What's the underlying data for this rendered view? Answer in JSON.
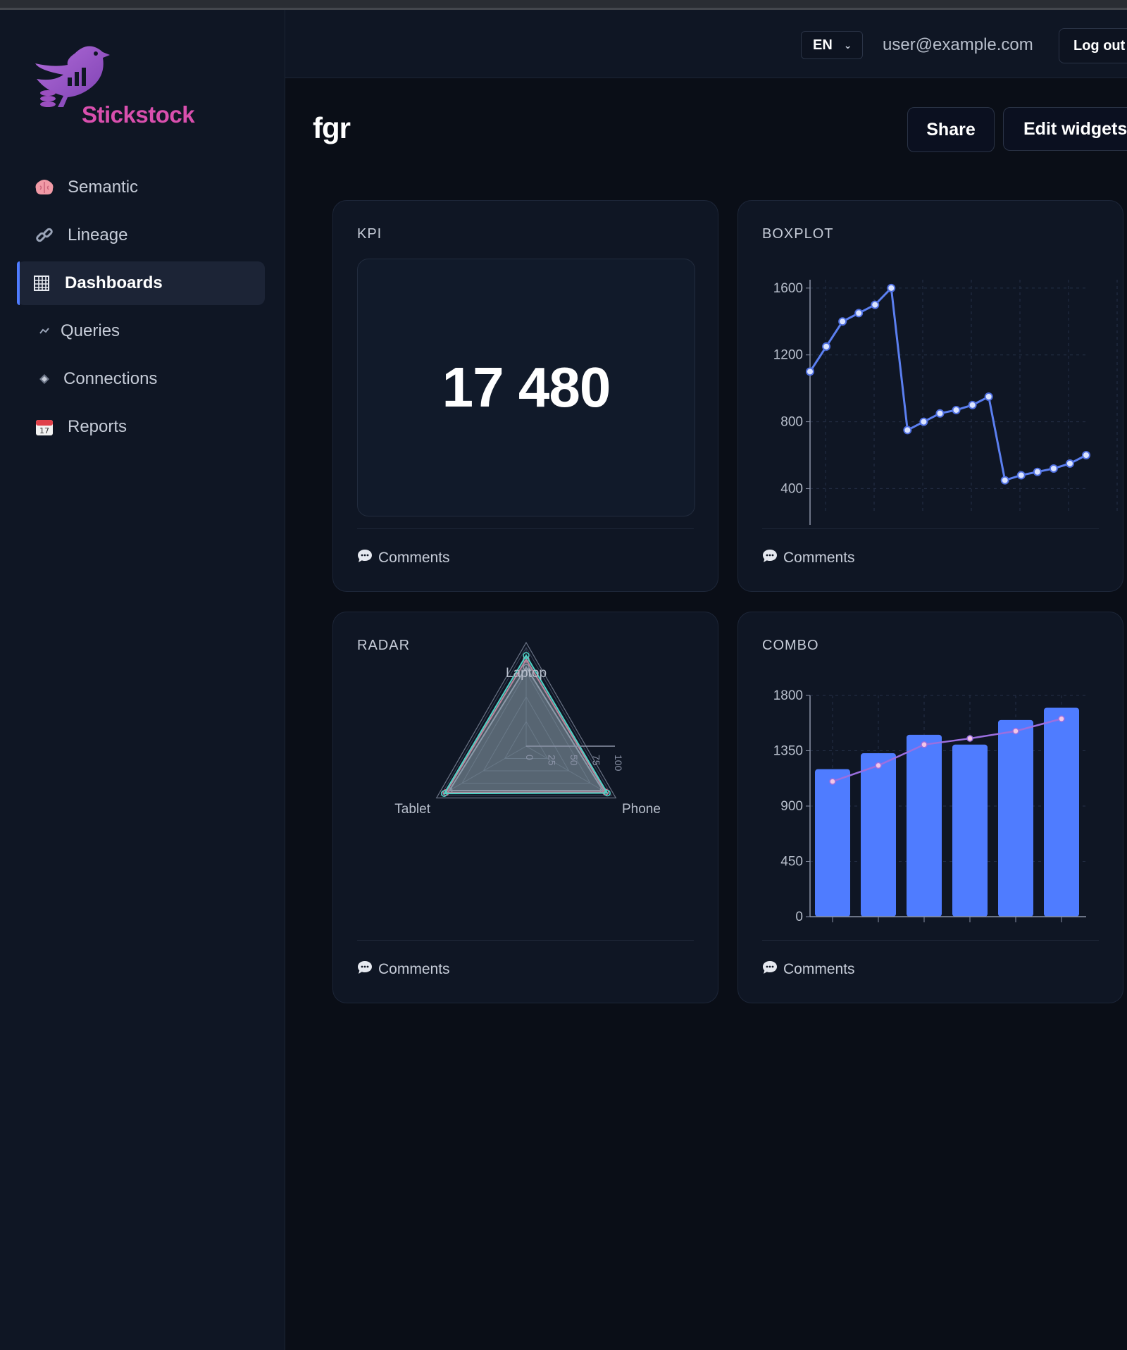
{
  "app": {
    "brand": "Stickstock",
    "colors": {
      "accent": "#4f7cff",
      "brand": "#d94fae",
      "line": "#9b6fe0",
      "background": "#0a0e17"
    }
  },
  "sidebar": {
    "items": [
      {
        "label": "Semantic",
        "icon": "brain-icon",
        "active": false
      },
      {
        "label": "Lineage",
        "icon": "link-icon",
        "active": false
      },
      {
        "label": "Dashboards",
        "icon": "grid-icon",
        "active": true
      },
      {
        "label": "Queries",
        "icon": "queries-icon",
        "active": false
      },
      {
        "label": "Connections",
        "icon": "diamond-icon",
        "active": false
      },
      {
        "label": "Reports",
        "icon": "calendar-icon",
        "active": false
      }
    ]
  },
  "topbar": {
    "language": "EN",
    "user_email": "user@example.com",
    "logout_label": "Log out"
  },
  "header": {
    "title": "fgr",
    "share_label": "Share",
    "edit_label": "Edit widgets"
  },
  "widgets": {
    "kpi": {
      "title": "KPI",
      "value": "17 480",
      "comments_label": "Comments"
    },
    "boxplot": {
      "title": "BOXPLOT",
      "comments_label": "Comments"
    },
    "radar": {
      "title": "RADAR",
      "comments_label": "Comments"
    },
    "combo": {
      "title": "COMBO",
      "comments_label": "Comments"
    }
  },
  "chart_data": [
    {
      "type": "line",
      "title": "BOXPLOT",
      "x": [
        1,
        2,
        3,
        4,
        5,
        6,
        7,
        8,
        9,
        10,
        11,
        12,
        13,
        14,
        15,
        16,
        17,
        18
      ],
      "values": [
        1100,
        1250,
        1400,
        1450,
        1500,
        1600,
        750,
        800,
        850,
        870,
        900,
        950,
        450,
        480,
        500,
        520,
        550,
        600
      ],
      "ylim": [
        250,
        1650
      ],
      "yticks": [
        400,
        800,
        1200,
        1600
      ],
      "grid": true
    },
    {
      "type": "radar",
      "title": "RADAR",
      "axes": [
        "Laptop",
        "Phone",
        "Tablet"
      ],
      "rticks": [
        "0",
        "25",
        "50",
        "75",
        "100"
      ],
      "series": [
        {
          "values": [
            92,
            95,
            96
          ],
          "color": "#4fd1c5"
        },
        {
          "values": [
            88,
            93,
            94
          ],
          "color": "#e06c8f"
        },
        {
          "values": [
            80,
            90,
            90
          ],
          "color": "#8b93a7"
        }
      ]
    },
    {
      "type": "bar",
      "title": "COMBO",
      "categories": [
        "",
        "",
        "",
        "",
        "",
        ""
      ],
      "values": [
        1200,
        1330,
        1480,
        1400,
        1600,
        1700
      ],
      "line_values": [
        1100,
        1230,
        1400,
        1450,
        1510,
        1610
      ],
      "ylim": [
        0,
        1800
      ],
      "yticks": [
        0,
        450,
        900,
        1350,
        1800
      ],
      "grid": true
    }
  ]
}
